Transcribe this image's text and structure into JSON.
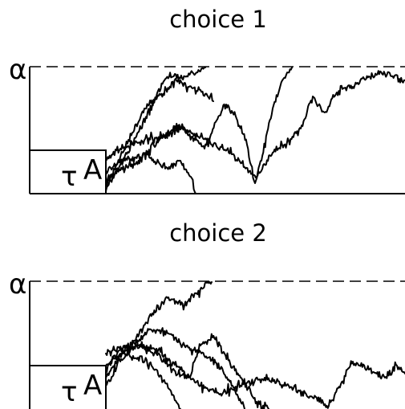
{
  "colors": {
    "background": "#ffffff",
    "ink": "#000000"
  },
  "panels": [
    {
      "title": "choice 1",
      "threshold_label": "α",
      "nondecision_label": "τ",
      "start_label": "A",
      "walk_count": 5
    },
    {
      "title": "choice 2",
      "threshold_label": "α",
      "nondecision_label": "τ",
      "start_label": "A",
      "walk_count": 5
    }
  ]
}
